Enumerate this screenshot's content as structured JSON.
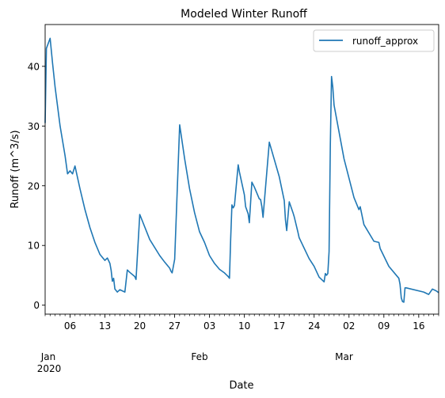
{
  "chart_data": {
    "type": "line",
    "title": "Modeled Winter Runoff",
    "xlabel": "Date",
    "ylabel": "Runoff (m^3/s)",
    "legend_position": "top-right",
    "grid": false,
    "xlim": [
      "2020-01-01",
      "2020-03-20"
    ],
    "ylim": [
      -1.5,
      47
    ],
    "y_ticks": [
      0,
      10,
      20,
      30,
      40
    ],
    "x_major_ticks": [
      {
        "date": "2020-01-06",
        "label": "06"
      },
      {
        "date": "2020-01-13",
        "label": "13"
      },
      {
        "date": "2020-01-20",
        "label": "20"
      },
      {
        "date": "2020-01-27",
        "label": "27"
      },
      {
        "date": "2020-02-03",
        "label": "03"
      },
      {
        "date": "2020-02-10",
        "label": "10"
      },
      {
        "date": "2020-02-17",
        "label": "17"
      },
      {
        "date": "2020-02-24",
        "label": "24"
      },
      {
        "date": "2020-03-02",
        "label": "02"
      },
      {
        "date": "2020-03-09",
        "label": "09"
      },
      {
        "date": "2020-03-16",
        "label": "16"
      }
    ],
    "month_labels": [
      {
        "date": "2020-01-01",
        "label": "Jan",
        "sublabel": "2020"
      },
      {
        "date": "2020-02-01",
        "label": "Feb",
        "sublabel": ""
      },
      {
        "date": "2020-03-01",
        "label": "Mar",
        "sublabel": ""
      }
    ],
    "color": "#1f77b4",
    "series": [
      {
        "name": "runoff_approx",
        "x": [
          "2020-01-01",
          "2020-01-01 06:00",
          "2020-01-02",
          "2020-01-02 12:00",
          "2020-01-03",
          "2020-01-04",
          "2020-01-05",
          "2020-01-05 12:00",
          "2020-01-06",
          "2020-01-06 12:00",
          "2020-01-07",
          "2020-01-08",
          "2020-01-09",
          "2020-01-10",
          "2020-01-11",
          "2020-01-12",
          "2020-01-13",
          "2020-01-13 12:00",
          "2020-01-14",
          "2020-01-14 06:00",
          "2020-01-14 12:00",
          "2020-01-14 18:00",
          "2020-01-15",
          "2020-01-15 12:00",
          "2020-01-16",
          "2020-01-17",
          "2020-01-17 12:00",
          "2020-01-18",
          "2020-01-19",
          "2020-01-19 06:00",
          "2020-01-20",
          "2020-01-22",
          "2020-01-24",
          "2020-01-25",
          "2020-01-26",
          "2020-01-26 06:00",
          "2020-01-26 12:00",
          "2020-01-27",
          "2020-01-28",
          "2020-01-29",
          "2020-01-30",
          "2020-01-31",
          "2020-02-01",
          "2020-02-02",
          "2020-02-03",
          "2020-02-04",
          "2020-02-05",
          "2020-02-06",
          "2020-02-06 12:00",
          "2020-02-06 18:00",
          "2020-02-07",
          "2020-02-07 06:00",
          "2020-02-07 12:00",
          "2020-02-07 18:00",
          "2020-02-08",
          "2020-02-08 18:00",
          "2020-02-09",
          "2020-02-10",
          "2020-02-10 06:00",
          "2020-02-10 18:00",
          "2020-02-11",
          "2020-02-11 12:00",
          "2020-02-12",
          "2020-02-13",
          "2020-02-13 06:00",
          "2020-02-13 12:00",
          "2020-02-13 18:00",
          "2020-02-15",
          "2020-02-17",
          "2020-02-18",
          "2020-02-18 06:00",
          "2020-02-18 12:00",
          "2020-02-19",
          "2020-02-19 18:00",
          "2020-02-20",
          "2020-02-20 18:00",
          "2020-02-21",
          "2020-02-23",
          "2020-02-24",
          "2020-02-25",
          "2020-02-26",
          "2020-02-26 06:00",
          "2020-02-26 12:00",
          "2020-02-26 18:00",
          "2020-02-27",
          "2020-02-27 06:00",
          "2020-02-27 12:00",
          "2020-02-27 18:00",
          "2020-02-28",
          "2020-03-01",
          "2020-03-03",
          "2020-03-04",
          "2020-03-04 06:00",
          "2020-03-05",
          "2020-03-07",
          "2020-03-08",
          "2020-03-08 06:00",
          "2020-03-10",
          "2020-03-12",
          "2020-03-12 06:00",
          "2020-03-12 12:00",
          "2020-03-12 18:00",
          "2020-03-13",
          "2020-03-13 06:00",
          "2020-03-13 12:00",
          "2020-03-17",
          "2020-03-18",
          "2020-03-18 18:00",
          "2020-03-19 12:00",
          "2020-03-20"
        ],
        "values": [
          30.5,
          43.0,
          44.7,
          40.5,
          36.5,
          30.0,
          25.0,
          22.0,
          22.5,
          22.0,
          23.3,
          19.5,
          16.0,
          13.0,
          10.5,
          8.5,
          7.5,
          7.9,
          7.0,
          5.8,
          4.0,
          4.5,
          2.7,
          2.2,
          2.6,
          2.2,
          5.9,
          5.5,
          4.8,
          4.3,
          15.2,
          11.0,
          8.3,
          7.2,
          6.2,
          5.7,
          5.4,
          7.7,
          30.2,
          24.5,
          19.5,
          15.5,
          12.3,
          10.5,
          8.3,
          7.0,
          6.0,
          5.4,
          5.0,
          4.8,
          4.5,
          11.0,
          16.8,
          16.3,
          16.7,
          23.5,
          22.3,
          18.5,
          16.5,
          15.3,
          13.8,
          20.6,
          19.8,
          17.8,
          17.7,
          16.5,
          14.7,
          27.3,
          21.5,
          17.5,
          14.3,
          12.5,
          17.3,
          15.5,
          14.8,
          12.2,
          11.3,
          7.8,
          6.5,
          4.7,
          3.9,
          5.3,
          5.0,
          5.3,
          9.0,
          27.0,
          38.3,
          36.5,
          33.5,
          24.5,
          18.0,
          16.0,
          16.5,
          13.5,
          10.7,
          10.5,
          9.5,
          6.5,
          4.5,
          3.5,
          1.2,
          0.6,
          0.5,
          2.9,
          2.9,
          2.2,
          1.8,
          2.7,
          2.4,
          2.1
        ]
      }
    ]
  }
}
